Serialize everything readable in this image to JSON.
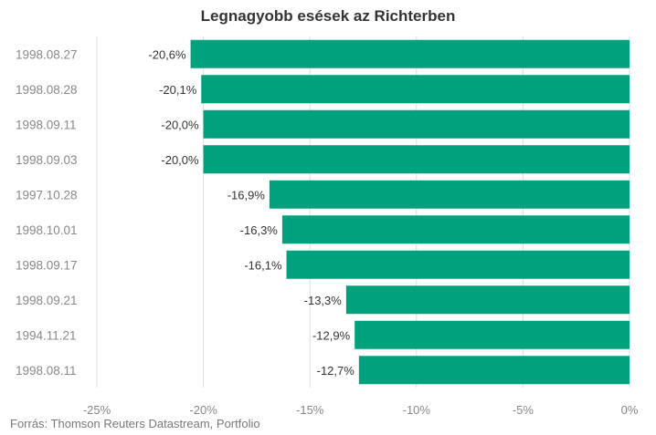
{
  "chart_data": {
    "type": "bar",
    "orientation": "horizontal",
    "title": "Legnagyobb esések az Richterben",
    "source": "Forrás: Thomson Reuters Datastream, Portfolio",
    "categories": [
      "1998.08.27",
      "1998.08.28",
      "1998.09.11",
      "1998.09.03",
      "1997.10.28",
      "1998.10.01",
      "1998.09.17",
      "1998.09.21",
      "1994.11.21",
      "1998.08.11"
    ],
    "values": [
      -20.6,
      -20.1,
      -20.0,
      -20.0,
      -16.9,
      -16.3,
      -16.1,
      -13.3,
      -12.9,
      -12.7
    ],
    "data_labels": [
      "-20,6%",
      "-20,1%",
      "-20,0%",
      "-20,0%",
      "-16,9%",
      "-16,3%",
      "-16,1%",
      "-13,3%",
      "-12,9%",
      "-12,7%"
    ],
    "xlim": [
      -25,
      0
    ],
    "ticks": [
      -25,
      -20,
      -15,
      -10,
      -5,
      0
    ],
    "tick_labels": [
      "-25%",
      "-20%",
      "-15%",
      "-10%",
      "-5%",
      "0%"
    ],
    "grid": "vertical",
    "bar_color": "#00A27D",
    "gridline_color": "#dddddd"
  }
}
